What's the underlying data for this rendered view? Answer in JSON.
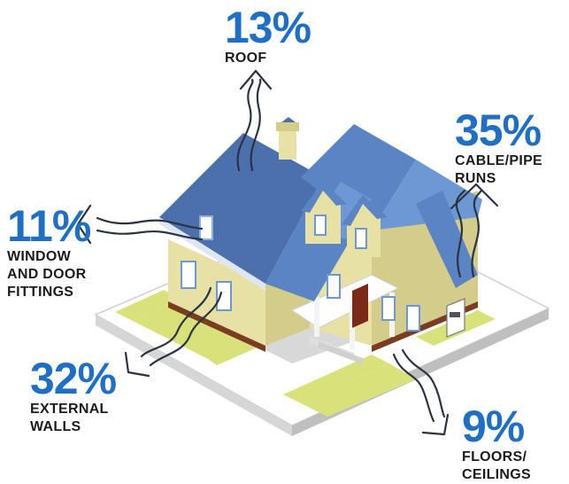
{
  "callouts": {
    "roof": {
      "percent": "13%",
      "label": [
        "ROOF"
      ]
    },
    "cable_pipe": {
      "percent": "35%",
      "label": [
        "CABLE/PIPE",
        "RUNS"
      ]
    },
    "window_door": {
      "percent": "11%",
      "label": [
        "WINDOW",
        "AND DOOR",
        "FITTINGS"
      ]
    },
    "external_walls": {
      "percent": "32%",
      "label": [
        "EXTERNAL",
        "WALLS"
      ]
    },
    "floors_ceilings": {
      "percent": "9%",
      "label": [
        "FLOORS/",
        "CEILINGS"
      ]
    }
  },
  "colors": {
    "accent": "#1f6fc5",
    "roof": "#5b84c4",
    "walls": "#e8e1a6",
    "lawn": "#d9e27a",
    "base": "#ffffff",
    "trim": "#7a3d22"
  },
  "icons": [
    "heat-loss-arrow-icon"
  ]
}
